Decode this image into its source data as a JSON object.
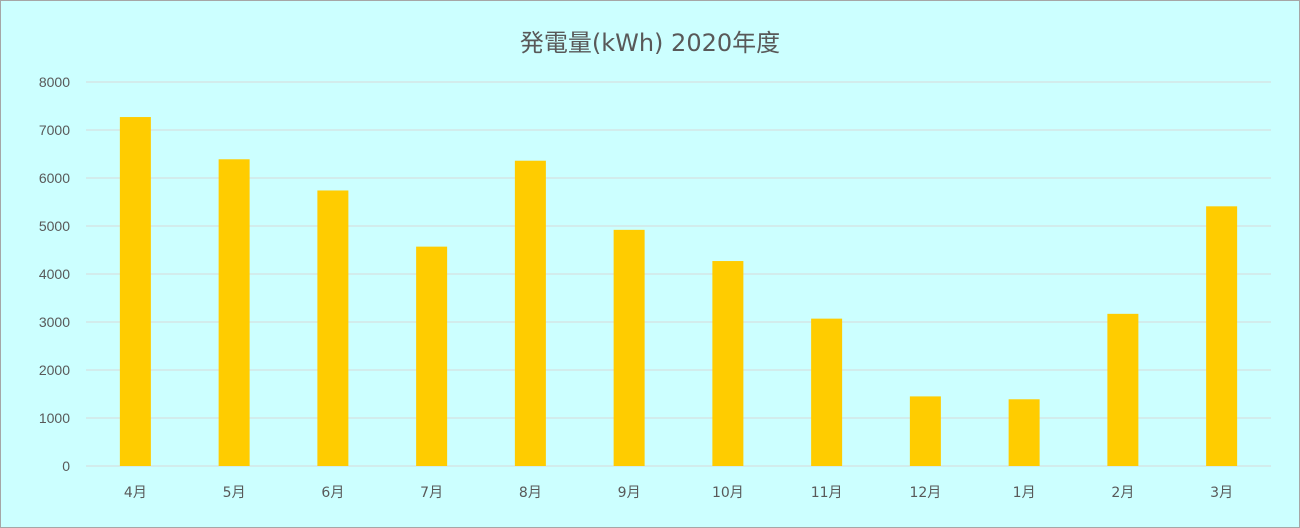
{
  "chart_data": {
    "type": "bar",
    "title": "発電量(kWh) 2020年度",
    "xlabel": "",
    "ylabel": "",
    "categories": [
      "4月",
      "5月",
      "6月",
      "7月",
      "8月",
      "9月",
      "10月",
      "11月",
      "12月",
      "1月",
      "2月",
      "3月"
    ],
    "values": [
      7270,
      6390,
      5740,
      4570,
      6360,
      4920,
      4270,
      3070,
      1450,
      1390,
      3170,
      5410
    ],
    "ylim": [
      0,
      8000
    ],
    "yticks": [
      "0",
      "1000",
      "2000",
      "3000",
      "4000",
      "5000",
      "6000",
      "7000",
      "8000"
    ],
    "grid": true,
    "legend": "none",
    "colors": {
      "bar": "#ffcc00",
      "background": "#ccffff",
      "grid": "#d9d9d9",
      "text": "#595959"
    }
  }
}
